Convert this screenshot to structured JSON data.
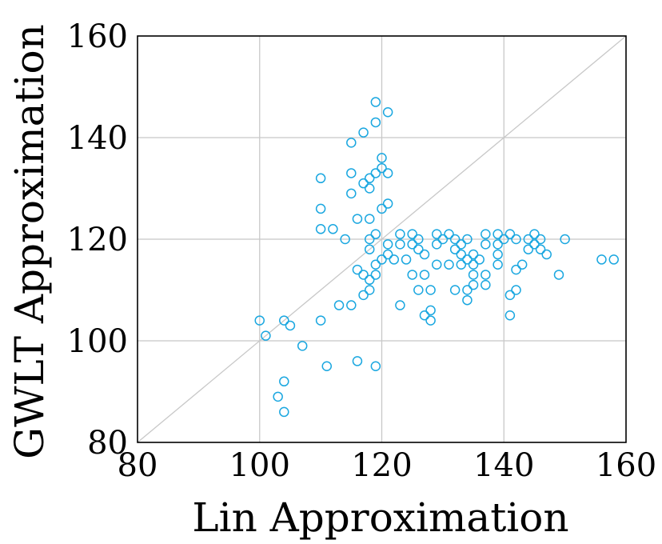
{
  "chart_data": {
    "type": "scatter",
    "xlabel": "Lin Approximation",
    "ylabel": "GWLT Approximation",
    "xlim": [
      80,
      160
    ],
    "ylim": [
      80,
      160
    ],
    "xticks": [
      "80",
      "100",
      "120",
      "140",
      "160"
    ],
    "yticks": [
      "80",
      "100",
      "120",
      "140",
      "160"
    ],
    "grid": true,
    "reference_line": "y = x",
    "marker": "hollow-circle",
    "colors": {
      "marker": "#1aa7e0",
      "frame": "#000000",
      "grid": "#c8c8c8",
      "reference_line": "#c8c8c8"
    },
    "points": [
      [
        100,
        104
      ],
      [
        101,
        101
      ],
      [
        103,
        89
      ],
      [
        104,
        86
      ],
      [
        104,
        92
      ],
      [
        104,
        104
      ],
      [
        105,
        103
      ],
      [
        107,
        99
      ],
      [
        110,
        104
      ],
      [
        110,
        122
      ],
      [
        110,
        126
      ],
      [
        110,
        132
      ],
      [
        111,
        95
      ],
      [
        112,
        122
      ],
      [
        113,
        107
      ],
      [
        114,
        120
      ],
      [
        115,
        107
      ],
      [
        115,
        129
      ],
      [
        115,
        133
      ],
      [
        115,
        139
      ],
      [
        116,
        96
      ],
      [
        116,
        114
      ],
      [
        116,
        124
      ],
      [
        117,
        109
      ],
      [
        117,
        113
      ],
      [
        117,
        131
      ],
      [
        117,
        141
      ],
      [
        118,
        110
      ],
      [
        118,
        112
      ],
      [
        118,
        118
      ],
      [
        118,
        120
      ],
      [
        118,
        124
      ],
      [
        118,
        130
      ],
      [
        118,
        132
      ],
      [
        119,
        95
      ],
      [
        119,
        113
      ],
      [
        119,
        115
      ],
      [
        119,
        121
      ],
      [
        119,
        133
      ],
      [
        119,
        143
      ],
      [
        119,
        147
      ],
      [
        120,
        116
      ],
      [
        120,
        126
      ],
      [
        120,
        134
      ],
      [
        120,
        136
      ],
      [
        121,
        117
      ],
      [
        121,
        119
      ],
      [
        121,
        127
      ],
      [
        121,
        133
      ],
      [
        121,
        145
      ],
      [
        122,
        116
      ],
      [
        123,
        107
      ],
      [
        123,
        119
      ],
      [
        123,
        121
      ],
      [
        124,
        116
      ],
      [
        125,
        113
      ],
      [
        125,
        119
      ],
      [
        125,
        121
      ],
      [
        126,
        110
      ],
      [
        126,
        118
      ],
      [
        126,
        120
      ],
      [
        127,
        105
      ],
      [
        127,
        113
      ],
      [
        127,
        117
      ],
      [
        128,
        104
      ],
      [
        128,
        106
      ],
      [
        128,
        110
      ],
      [
        129,
        115
      ],
      [
        129,
        119
      ],
      [
        129,
        121
      ],
      [
        130,
        120
      ],
      [
        131,
        115
      ],
      [
        131,
        121
      ],
      [
        132,
        110
      ],
      [
        132,
        118
      ],
      [
        132,
        120
      ],
      [
        133,
        115
      ],
      [
        133,
        117
      ],
      [
        133,
        119
      ],
      [
        134,
        108
      ],
      [
        134,
        110
      ],
      [
        134,
        116
      ],
      [
        134,
        120
      ],
      [
        135,
        111
      ],
      [
        135,
        113
      ],
      [
        135,
        115
      ],
      [
        135,
        117
      ],
      [
        136,
        116
      ],
      [
        137,
        111
      ],
      [
        137,
        113
      ],
      [
        137,
        119
      ],
      [
        137,
        121
      ],
      [
        139,
        115
      ],
      [
        139,
        117
      ],
      [
        139,
        119
      ],
      [
        139,
        121
      ],
      [
        140,
        120
      ],
      [
        141,
        105
      ],
      [
        141,
        109
      ],
      [
        141,
        121
      ],
      [
        142,
        110
      ],
      [
        142,
        114
      ],
      [
        142,
        120
      ],
      [
        143,
        115
      ],
      [
        144,
        118
      ],
      [
        144,
        120
      ],
      [
        145,
        119
      ],
      [
        145,
        121
      ],
      [
        146,
        118
      ],
      [
        146,
        120
      ],
      [
        147,
        117
      ],
      [
        149,
        113
      ],
      [
        150,
        120
      ],
      [
        156,
        116
      ],
      [
        158,
        116
      ]
    ]
  }
}
